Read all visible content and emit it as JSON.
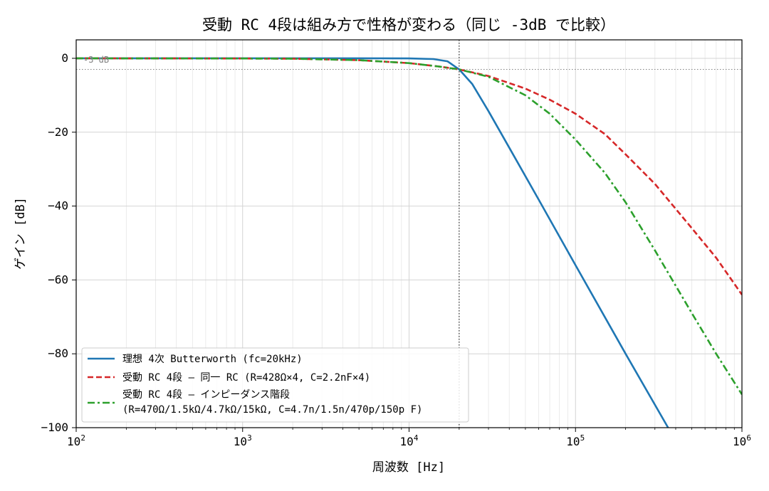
{
  "chart_data": {
    "type": "line",
    "title": "受動 RC 4段は組み方で性格が変わる（同じ -3dB で比較）",
    "xlabel": "周波数 [Hz]",
    "ylabel": "ゲイン [dB]",
    "xscale": "log",
    "xlim": [
      100,
      1000000
    ],
    "ylim": [
      -100,
      5
    ],
    "x_ticks": [
      {
        "value": 100,
        "base": "10",
        "exp": "2"
      },
      {
        "value": 1000,
        "base": "10",
        "exp": "3"
      },
      {
        "value": 10000,
        "base": "10",
        "exp": "4"
      },
      {
        "value": 100000,
        "base": "10",
        "exp": "5"
      },
      {
        "value": 1000000,
        "base": "10",
        "exp": "6"
      }
    ],
    "y_ticks": [
      {
        "value": 0,
        "label": "0"
      },
      {
        "value": -20,
        "label": "−20"
      },
      {
        "value": -40,
        "label": "−40"
      },
      {
        "value": -60,
        "label": "−60"
      },
      {
        "value": -80,
        "label": "−80"
      },
      {
        "value": -100,
        "label": "−100"
      }
    ],
    "grid": true,
    "reference_lines": {
      "hline": {
        "value": -3,
        "label": "-3 dB",
        "color": "#808080"
      },
      "vline": {
        "value": 20000,
        "color": "#000000"
      }
    },
    "legend_position": "lower-left",
    "series": [
      {
        "name": "理想 4次 Butterworth (fc=20kHz)",
        "color": "#1f77b4",
        "style": "solid",
        "x": [
          100,
          1000,
          5000,
          10000,
          14000,
          17000,
          20000,
          24000,
          30000,
          40000,
          60000,
          100000,
          200000,
          360000
        ],
        "y": [
          0,
          0,
          0,
          -0.02,
          -0.2,
          -0.8,
          -3.0,
          -7.0,
          -14.3,
          -24.2,
          -38.2,
          -56.0,
          -80.0,
          -100.0
        ]
      },
      {
        "name": "受動 RC 4段 — 同一 RC (R=428Ω×4, C=2.2nF×4)",
        "color": "#d62728",
        "style": "dashed",
        "x": [
          100,
          1000,
          2000,
          5000,
          10000,
          15000,
          20000,
          30000,
          50000,
          70000,
          100000,
          150000,
          200000,
          300000,
          500000,
          700000,
          1000000
        ],
        "y": [
          0,
          -0.05,
          -0.1,
          -0.5,
          -1.3,
          -2.2,
          -3.0,
          -4.8,
          -8.2,
          -11.2,
          -15.0,
          -20.5,
          -26.0,
          -34.0,
          -46.0,
          -54.0,
          -64.0
        ]
      },
      {
        "name": "受動 RC 4段 — インピーダンス階段",
        "name_line2": "(R=470Ω/1.5kΩ/4.7kΩ/15kΩ, C=4.7n/1.5n/470p/150p F)",
        "color": "#2ca02c",
        "style": "dashdot",
        "x": [
          100,
          1000,
          2000,
          5000,
          10000,
          15000,
          20000,
          30000,
          50000,
          70000,
          100000,
          150000,
          200000,
          300000,
          500000,
          700000,
          1000000
        ],
        "y": [
          0,
          -0.05,
          -0.1,
          -0.5,
          -1.3,
          -2.2,
          -3.0,
          -5.0,
          -10.0,
          -15.0,
          -22.0,
          -31.0,
          -39.0,
          -52.0,
          -69.0,
          -80.0,
          -91.0
        ]
      }
    ]
  }
}
